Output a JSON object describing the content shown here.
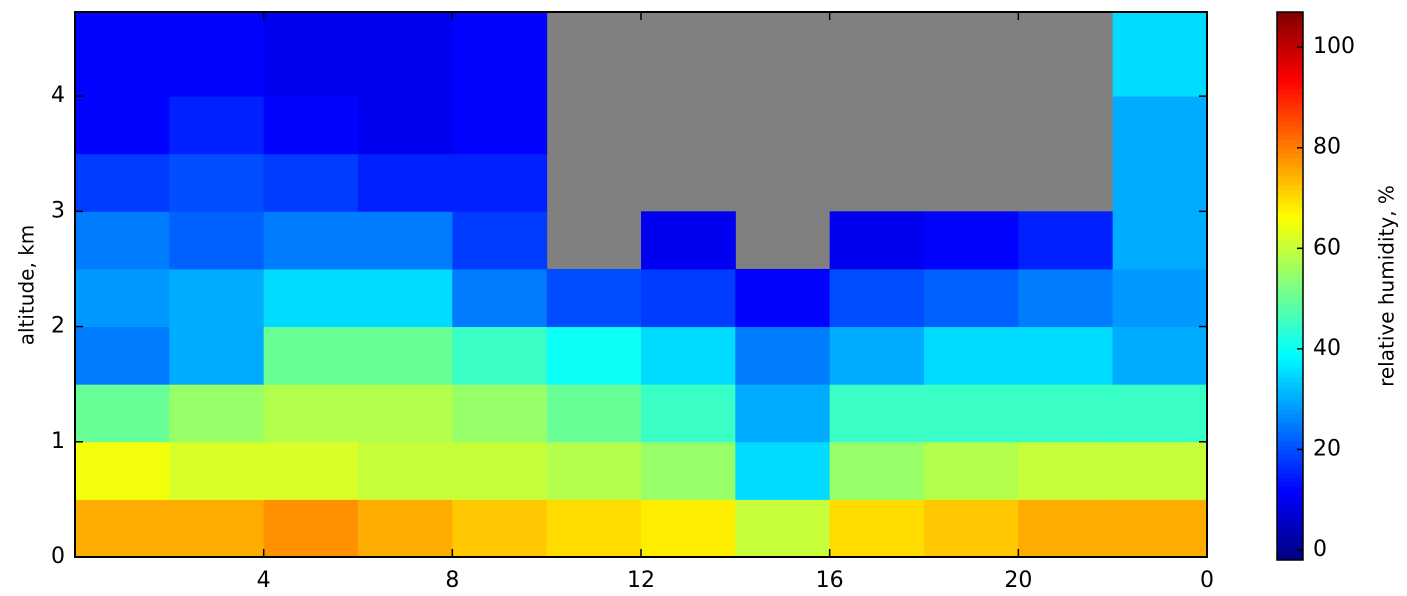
{
  "chart_data": {
    "type": "heatmap",
    "ylabel": "altitude, km",
    "colorbar_label": "relative humidity, %",
    "colormap": "jet",
    "missing_color": "#808080",
    "xbins": [
      0,
      2,
      4,
      6,
      8,
      10,
      12,
      14,
      16,
      18,
      20,
      22,
      24
    ],
    "ybins": [
      0,
      0.5,
      1,
      1.5,
      2,
      2.5,
      3,
      3.5,
      4,
      4.73
    ],
    "z": [
      [
        75,
        75,
        78,
        75,
        72,
        70,
        68,
        60,
        70,
        72,
        75,
        75
      ],
      [
        65,
        62,
        62,
        60,
        60,
        58,
        55,
        35,
        55,
        58,
        60,
        60
      ],
      [
        50,
        55,
        58,
        58,
        55,
        50,
        45,
        30,
        45,
        45,
        45,
        45
      ],
      [
        25,
        30,
        50,
        50,
        45,
        40,
        35,
        25,
        30,
        35,
        35,
        30
      ],
      [
        28,
        30,
        35,
        35,
        25,
        20,
        18,
        12,
        20,
        22,
        25,
        28
      ],
      [
        25,
        22,
        25,
        25,
        18,
        null,
        10,
        null,
        10,
        12,
        15,
        30
      ],
      [
        18,
        20,
        18,
        15,
        15,
        null,
        null,
        null,
        null,
        null,
        null,
        30
      ],
      [
        12,
        15,
        12,
        10,
        12,
        null,
        null,
        null,
        null,
        null,
        null,
        30
      ],
      [
        12,
        12,
        10,
        10,
        12,
        null,
        null,
        null,
        null,
        null,
        null,
        35
      ]
    ],
    "xlim": [
      0,
      24
    ],
    "xticks": [
      4,
      8,
      12,
      16,
      20,
      {
        "value": 24,
        "label": "0"
      }
    ],
    "ylim": [
      0,
      4.73
    ],
    "yticks": [
      0,
      1,
      2,
      3,
      4
    ],
    "clim": [
      -2,
      107
    ],
    "cticks": [
      0,
      20,
      40,
      60,
      80,
      100
    ]
  }
}
